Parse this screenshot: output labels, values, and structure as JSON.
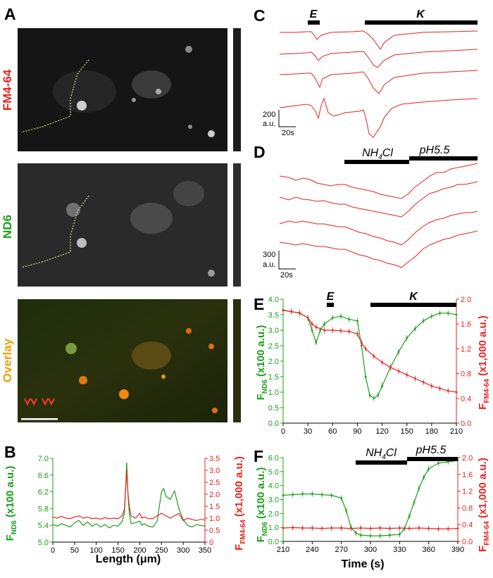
{
  "figure": {
    "panel_A": {
      "label": "A",
      "rows": [
        {
          "label": "FM4-64",
          "color": "#e8231f"
        },
        {
          "label": "ND6",
          "color": "#1aa01a"
        },
        {
          "label": "Overlay",
          "color": "#f0a000"
        }
      ]
    },
    "panel_B": {
      "label": "B",
      "xlabel_pre": "Length (",
      "xlabel_mu": "μ",
      "xlabel_post": "m)",
      "ylabel_left": {
        "main": "F",
        "sub": "ND6",
        "rest": " (x100 a.u.)"
      },
      "ylabel_right": {
        "main": "F",
        "sub": "FM4-64",
        "rest": " (x1,000 a.u.)"
      }
    },
    "panel_C": {
      "label": "C",
      "bar1": "E",
      "bar2": "K",
      "scale_y": "200",
      "scale_y_unit": "a.u.",
      "scale_x": "20s"
    },
    "panel_D": {
      "label": "D",
      "bar1_main": "NH",
      "bar1_sub": "4",
      "bar1_rest": "Cl",
      "bar2": "pH5.5",
      "scale_y": "300",
      "scale_y_unit": "a.u.",
      "scale_x": "20s"
    },
    "panel_E": {
      "label": "E",
      "bar1": "E",
      "bar2": "K",
      "ylabel_left": {
        "main": "F",
        "sub": "ND6",
        "rest": " (x100 a.u.)"
      },
      "ylabel_right": {
        "main": "F",
        "sub": "FM4-64",
        "rest": " (x1,000 a.u.)"
      }
    },
    "panel_F": {
      "label": "F",
      "bar1_main": "NH",
      "bar1_sub": "4",
      "bar1_rest": "Cl",
      "bar2": "pH5.5",
      "xlabel": "Time (s)",
      "ylabel_left": {
        "main": "F",
        "sub": "ND6",
        "rest": " (x100 a.u.)"
      },
      "ylabel_right": {
        "main": "F",
        "sub": "FM4-64",
        "rest": " (x1,000 a.u.)"
      }
    }
  },
  "chart_data": [
    {
      "panel": "B",
      "type": "line",
      "xlim": [
        0,
        350
      ],
      "x_ticks": [
        0,
        50,
        100,
        150,
        200,
        250,
        300,
        350
      ],
      "ylim_left": [
        5.0,
        7.0
      ],
      "y_ticks_left": [
        "5.0",
        "5.4",
        "5.8",
        "6.2",
        "6.6",
        "7.0"
      ],
      "ylim_right": [
        0,
        3.5
      ],
      "y_ticks_right": [
        "0",
        "0.5",
        "1.0",
        "1.5",
        "2.0",
        "2.5",
        "3.0",
        "3.5"
      ],
      "series": [
        {
          "color": "#1aa01a",
          "axis": "left",
          "x": [
            0,
            10,
            20,
            30,
            40,
            50,
            60,
            70,
            80,
            90,
            100,
            110,
            120,
            130,
            140,
            150,
            160,
            165,
            170,
            173,
            176,
            180,
            190,
            200,
            205,
            210,
            220,
            230,
            240,
            250,
            255,
            260,
            270,
            280,
            290,
            300,
            310,
            320,
            330,
            340,
            350
          ],
          "y": [
            5.42,
            5.38,
            5.44,
            5.4,
            5.36,
            5.46,
            5.52,
            5.4,
            5.48,
            5.38,
            5.44,
            5.36,
            5.42,
            5.34,
            5.4,
            5.38,
            5.5,
            5.7,
            6.9,
            6.1,
            5.7,
            5.44,
            5.46,
            5.5,
            5.4,
            5.44,
            5.38,
            5.36,
            5.5,
            6.2,
            6.28,
            6.1,
            6.02,
            6.22,
            5.8,
            5.54,
            5.4,
            5.36,
            5.42,
            5.4,
            5.38
          ]
        },
        {
          "color": "#e8231f",
          "axis": "right",
          "x": [
            0,
            10,
            20,
            30,
            40,
            50,
            60,
            70,
            80,
            90,
            100,
            110,
            120,
            130,
            140,
            150,
            160,
            165,
            170,
            173,
            176,
            180,
            190,
            200,
            205,
            210,
            220,
            230,
            240,
            250,
            260,
            270,
            280,
            290,
            300,
            310,
            320,
            330,
            340,
            350
          ],
          "y": [
            1.05,
            1.0,
            1.08,
            1.0,
            0.98,
            1.05,
            1.1,
            1.0,
            1.05,
            0.98,
            1.0,
            0.96,
            1.02,
            0.98,
            1.0,
            0.98,
            1.1,
            1.4,
            3.0,
            2.0,
            1.5,
            1.1,
            1.0,
            1.2,
            1.0,
            1.05,
            0.98,
            0.98,
            1.1,
            1.2,
            1.1,
            1.0,
            1.1,
            1.2,
            0.9,
            1.0,
            0.95,
            0.9,
            0.95,
            0.92
          ]
        }
      ]
    },
    {
      "panel": "E",
      "type": "line",
      "xlim": [
        0,
        210
      ],
      "x_ticks": [
        0,
        30,
        60,
        90,
        120,
        150,
        180,
        210
      ],
      "ylim_left": [
        0,
        4.0
      ],
      "y_ticks_left": [
        "0.0",
        "0.5",
        "1.0",
        "1.5",
        "2.0",
        "2.5",
        "3.0",
        "3.5",
        "4.0"
      ],
      "ylim_right": [
        0,
        2.0
      ],
      "y_ticks_right": [
        "0.0",
        "0.4",
        "0.8",
        "1.2",
        "1.6",
        "2.0"
      ],
      "stim_bars": [
        {
          "name": "E",
          "x": [
            30,
            38
          ]
        },
        {
          "name": "K",
          "x": [
            90,
            210
          ]
        }
      ],
      "series": [
        {
          "color": "#1aa01a",
          "axis": "left",
          "x": [
            0,
            10,
            20,
            30,
            35,
            40,
            45,
            50,
            60,
            70,
            80,
            90,
            95,
            100,
            105,
            110,
            115,
            120,
            130,
            140,
            150,
            160,
            170,
            180,
            190,
            200,
            210
          ],
          "y": [
            3.65,
            3.6,
            3.55,
            3.4,
            3.0,
            2.6,
            3.0,
            3.2,
            3.4,
            3.45,
            3.35,
            3.3,
            2.5,
            1.5,
            0.9,
            0.8,
            0.9,
            1.2,
            1.8,
            2.3,
            2.75,
            3.05,
            3.3,
            3.45,
            3.55,
            3.55,
            3.5
          ]
        },
        {
          "color": "#e8231f",
          "axis": "right",
          "x": [
            0,
            10,
            20,
            30,
            35,
            40,
            50,
            60,
            70,
            80,
            90,
            95,
            100,
            110,
            120,
            130,
            140,
            150,
            160,
            170,
            180,
            190,
            200,
            210
          ],
          "y": [
            1.82,
            1.8,
            1.78,
            1.7,
            1.6,
            1.55,
            1.5,
            1.5,
            1.49,
            1.48,
            1.44,
            1.3,
            1.2,
            1.08,
            0.98,
            0.9,
            0.84,
            0.78,
            0.72,
            0.66,
            0.6,
            0.56,
            0.52,
            0.5
          ]
        }
      ]
    },
    {
      "panel": "F",
      "type": "line",
      "xlim": [
        210,
        390
      ],
      "x_ticks": [
        210,
        240,
        270,
        300,
        330,
        360,
        390
      ],
      "ylim_left": [
        0,
        6.0
      ],
      "y_ticks_left": [
        "0.0",
        "1.0",
        "2.0",
        "3.0",
        "4.0",
        "5.0",
        "6.0"
      ],
      "ylim_right": [
        0,
        2.0
      ],
      "y_ticks_right": [
        "0.0",
        "0.4",
        "0.8",
        "1.2",
        "1.6",
        "2.0"
      ],
      "stim_bars": [
        {
          "name": "NH4Cl",
          "x": [
            270,
            330
          ]
        },
        {
          "name": "pH5.5",
          "x": [
            330,
            390
          ]
        }
      ],
      "series": [
        {
          "color": "#1aa01a",
          "axis": "left",
          "x": [
            210,
            220,
            230,
            240,
            250,
            260,
            270,
            275,
            280,
            285,
            290,
            300,
            310,
            320,
            330,
            335,
            340,
            345,
            350,
            355,
            360,
            370,
            380,
            390
          ],
          "y": [
            3.3,
            3.35,
            3.4,
            3.4,
            3.35,
            3.3,
            3.1,
            2.2,
            1.0,
            0.6,
            0.45,
            0.4,
            0.4,
            0.45,
            0.5,
            0.9,
            1.8,
            2.8,
            3.8,
            4.6,
            5.2,
            5.6,
            5.7,
            5.8
          ]
        },
        {
          "color": "#e8231f",
          "axis": "right",
          "x": [
            210,
            220,
            230,
            240,
            250,
            260,
            270,
            280,
            290,
            300,
            310,
            320,
            330,
            340,
            350,
            360,
            370,
            380,
            390
          ],
          "y": [
            0.32,
            0.33,
            0.32,
            0.32,
            0.31,
            0.32,
            0.32,
            0.31,
            0.32,
            0.31,
            0.32,
            0.31,
            0.32,
            0.31,
            0.32,
            0.31,
            0.3,
            0.3,
            0.31
          ]
        }
      ]
    }
  ]
}
